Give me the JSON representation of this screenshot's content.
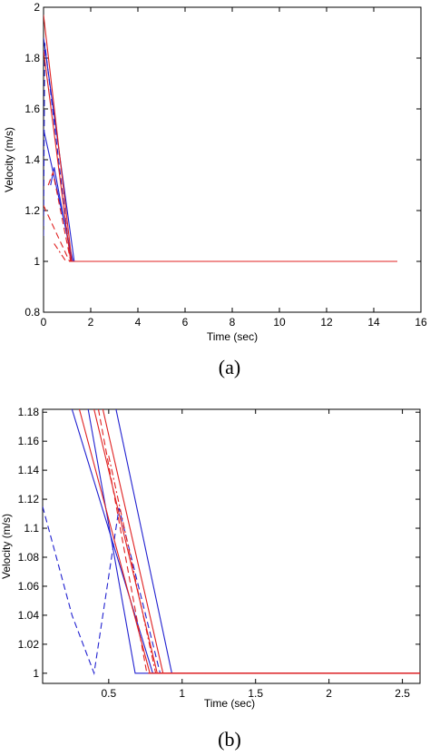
{
  "chart_data": [
    {
      "type": "line",
      "caption": "(a)",
      "xlabel": "Time (sec)",
      "ylabel": "Velocity (m/s)",
      "xlim": [
        0,
        16
      ],
      "ylim": [
        0.8,
        2
      ],
      "xticks": [
        "0",
        "2",
        "4",
        "6",
        "8",
        "10",
        "12",
        "14",
        "16"
      ],
      "yticks": [
        "0.8",
        "1",
        "1.2",
        "1.4",
        "1.6",
        "1.8",
        "2"
      ],
      "grid": false,
      "colors": {
        "blue": "#2020d0",
        "red": "#e02020"
      },
      "series": [
        {
          "color": "blue",
          "dash": "solid",
          "x": [
            0,
            1.3,
            15
          ],
          "y": [
            1.88,
            1.0,
            1.0
          ]
        },
        {
          "color": "blue",
          "dash": "solid",
          "x": [
            0,
            1.25,
            15
          ],
          "y": [
            1.52,
            1.0,
            1.0
          ]
        },
        {
          "color": "blue",
          "dash": "dash",
          "x": [
            0,
            0.05,
            1.15,
            15
          ],
          "y": [
            1.1,
            1.86,
            1.0,
            1.0
          ]
        },
        {
          "color": "blue",
          "dash": "solid",
          "x": [
            0.3,
            0.45,
            1.2,
            15
          ],
          "y": [
            1.3,
            1.37,
            1.0,
            1.0
          ]
        },
        {
          "color": "red",
          "dash": "solid",
          "x": [
            0,
            1.2,
            15
          ],
          "y": [
            1.97,
            1.0,
            1.0
          ]
        },
        {
          "color": "red",
          "dash": "solid",
          "x": [
            0,
            1.15,
            15
          ],
          "y": [
            1.83,
            1.0,
            1.0
          ]
        },
        {
          "color": "red",
          "dash": "dash",
          "x": [
            0,
            1.1,
            15
          ],
          "y": [
            1.22,
            1.0,
            1.0
          ]
        },
        {
          "color": "red",
          "dash": "dash",
          "x": [
            0.2,
            0.4,
            1.15
          ],
          "y": [
            1.3,
            1.35,
            1.0
          ]
        },
        {
          "color": "red",
          "dash": "dashdot",
          "x": [
            0.45,
            0.95
          ],
          "y": [
            1.07,
            1.0
          ]
        }
      ]
    },
    {
      "type": "line",
      "caption": "(b)",
      "xlabel": "Time (sec)",
      "ylabel": "Velocity (m/s)",
      "xlim": [
        0.05,
        2.62
      ],
      "ylim": [
        0.993,
        1.182
      ],
      "xticks": [
        "0.5",
        "1",
        "1.5",
        "2",
        "2.5"
      ],
      "yticks": [
        "1",
        "1.02",
        "1.04",
        "1.06",
        "1.08",
        "1.1",
        "1.12",
        "1.14",
        "1.16",
        "1.18"
      ],
      "grid": false,
      "colors": {
        "blue": "#2020d0",
        "red": "#e02020"
      },
      "series": [
        {
          "color": "blue",
          "dash": "solid",
          "x": [
            0.25,
            0.8,
            2.62
          ],
          "y": [
            1.182,
            1.0,
            1.0
          ]
        },
        {
          "color": "blue",
          "dash": "solid",
          "x": [
            0.55,
            0.93,
            2.62
          ],
          "y": [
            1.182,
            1.0,
            1.0
          ]
        },
        {
          "color": "blue",
          "dash": "solid",
          "x": [
            0.36,
            0.68,
            2.62
          ],
          "y": [
            1.182,
            1.0,
            1.0
          ]
        },
        {
          "color": "blue",
          "dash": "dash",
          "x": [
            0.05,
            0.25,
            0.4,
            0.57,
            0.85,
            2.62
          ],
          "y": [
            1.115,
            1.04,
            1.0,
            1.114,
            1.0,
            1.0
          ]
        },
        {
          "color": "red",
          "dash": "solid",
          "x": [
            0.3,
            0.78,
            2.62
          ],
          "y": [
            1.182,
            1.0,
            1.0
          ]
        },
        {
          "color": "red",
          "dash": "solid",
          "x": [
            0.46,
            0.87,
            2.62
          ],
          "y": [
            1.182,
            1.0,
            1.0
          ]
        },
        {
          "color": "red",
          "dash": "solid",
          "x": [
            0.4,
            0.83,
            2.62
          ],
          "y": [
            1.182,
            1.0,
            1.0
          ]
        },
        {
          "color": "red",
          "dash": "dash",
          "x": [
            0.43,
            0.76,
            2.62
          ],
          "y": [
            1.182,
            1.0,
            1.0
          ]
        },
        {
          "color": "red",
          "dash": "dashdot",
          "x": [
            0.5,
            0.82,
            2.62
          ],
          "y": [
            1.15,
            1.0,
            1.0
          ]
        }
      ]
    }
  ]
}
